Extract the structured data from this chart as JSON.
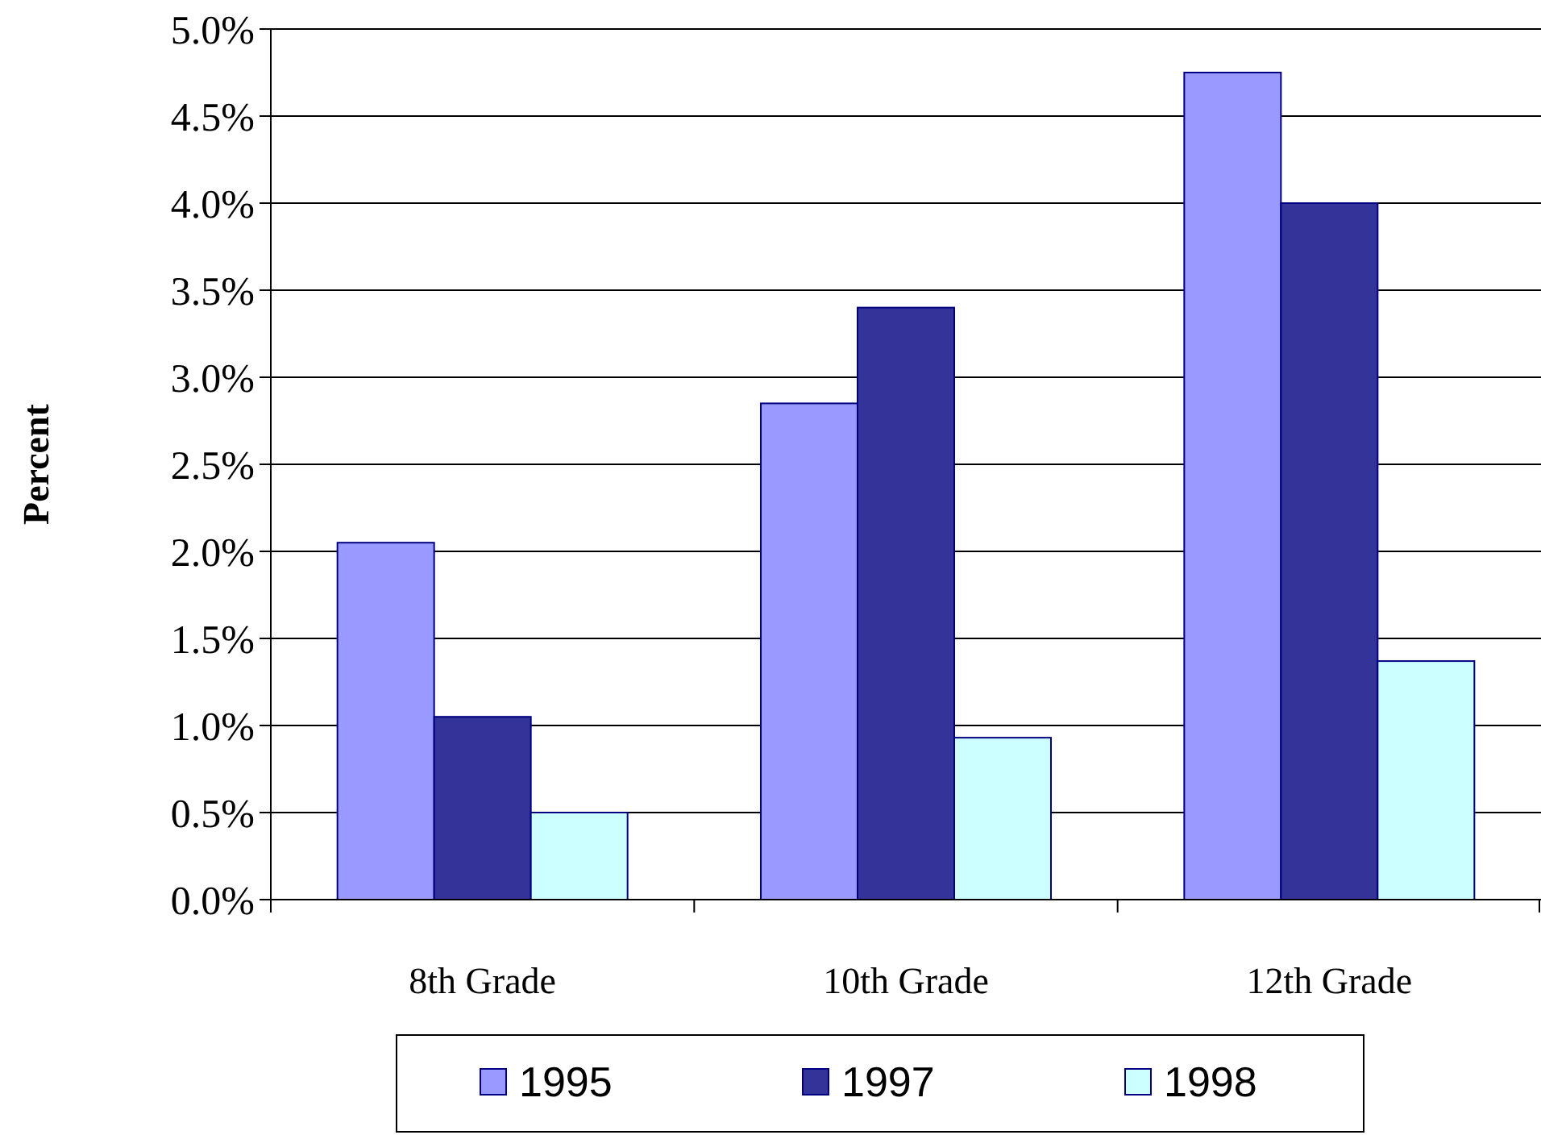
{
  "chart_data": {
    "type": "bar",
    "ylabel": "Percent",
    "categories": [
      "8th Grade",
      "10th Grade",
      "12th Grade"
    ],
    "series": [
      {
        "name": "1995",
        "color": "#9999ff",
        "values": [
          2.05,
          2.85,
          4.75
        ]
      },
      {
        "name": "1997",
        "color": "#333399",
        "values": [
          1.05,
          3.4,
          4.0
        ]
      },
      {
        "name": "1998",
        "color": "#ccffff",
        "values": [
          0.5,
          0.93,
          1.37
        ]
      }
    ],
    "ylim": [
      0,
      5
    ],
    "yticks": [
      {
        "value": 0,
        "label": "0.0%"
      },
      {
        "value": 0.5,
        "label": "0.5%"
      },
      {
        "value": 1,
        "label": "1.0%"
      },
      {
        "value": 1.5,
        "label": "1.5%"
      },
      {
        "value": 2,
        "label": "2.0%"
      },
      {
        "value": 2.5,
        "label": "2.5%"
      },
      {
        "value": 3,
        "label": "3.0%"
      },
      {
        "value": 3.5,
        "label": "3.5%"
      },
      {
        "value": 4,
        "label": "4.0%"
      },
      {
        "value": 4.5,
        "label": "4.5%"
      },
      {
        "value": 5,
        "label": "5.0%"
      }
    ],
    "grid": "y",
    "legend": "bottom"
  }
}
